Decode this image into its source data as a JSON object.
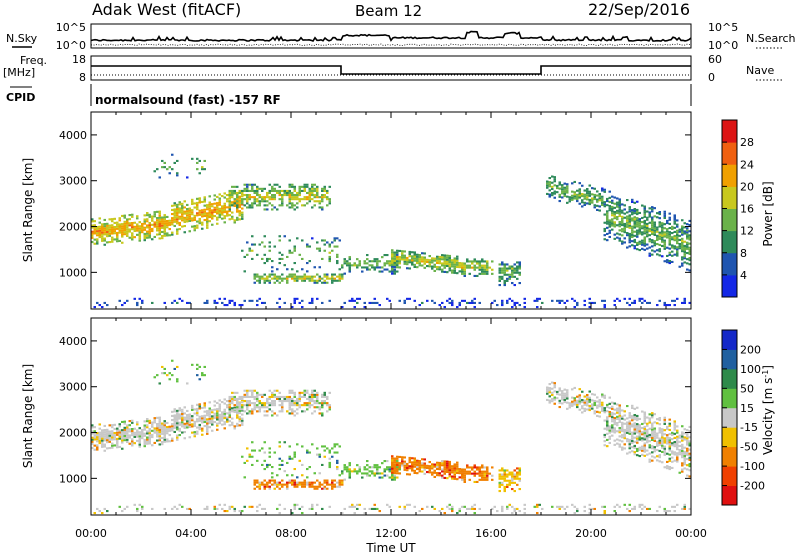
{
  "header": {
    "station": "Adak West (fitACF)",
    "beam": "Beam 12",
    "date": "22/Sep/2016"
  },
  "nsky_panel": {
    "left_label": "N.Sky",
    "right_label": "N.Search",
    "left_ticks": [
      "10^5",
      "10^0"
    ],
    "right_ticks": [
      "10^5",
      "10^0"
    ]
  },
  "freq_panel": {
    "left_label_1": "Freq.",
    "left_label_2": "[MHz]",
    "right_label": "Nave",
    "left_ticks": [
      "18",
      "8"
    ],
    "right_ticks": [
      "60",
      "0"
    ]
  },
  "cpid_panel": {
    "label": "CPID",
    "text": "normalsound (fast) -157 RF"
  },
  "chart_data": [
    {
      "type": "heatmap",
      "name": "power",
      "ylabel": "Slant Range [km]",
      "yticks": [
        1000,
        2000,
        3000,
        4000
      ],
      "ylim": [
        200,
        4500
      ],
      "xlim": [
        0,
        24
      ],
      "xticks": [
        "00:00",
        "04:00",
        "08:00",
        "12:00",
        "16:00",
        "20:00",
        "00:00"
      ],
      "xlabel": "Time UT",
      "colorbar": {
        "label": "Power [dB]",
        "ticks": [
          "4",
          "8",
          "12",
          "16",
          "20",
          "24",
          "28"
        ],
        "colors": [
          "#1428e6",
          "#1f55b0",
          "#2e8a5a",
          "#6ab24a",
          "#c8c81e",
          "#f0a000",
          "#f06010",
          "#dc1414"
        ]
      }
    },
    {
      "type": "heatmap",
      "name": "velocity",
      "ylabel": "Slant Range [km]",
      "yticks": [
        1000,
        2000,
        3000,
        4000
      ],
      "ylim": [
        200,
        4500
      ],
      "xlim": [
        0,
        24
      ],
      "xticks": [
        "00:00",
        "04:00",
        "08:00",
        "12:00",
        "16:00",
        "20:00",
        "00:00"
      ],
      "xlabel": "Time UT",
      "colorbar": {
        "label": "Velocity [m s",
        "label_sup": "-1",
        "label_close": "]",
        "ticks": [
          "200",
          "100",
          "50",
          "15",
          "-15",
          "-50",
          "-100",
          "-200"
        ],
        "colors": [
          "#1428c8",
          "#2060a0",
          "#2e8a4a",
          "#60c040",
          "#c8c8c8",
          "#f0c000",
          "#f08000",
          "#f04000",
          "#e01010"
        ]
      }
    }
  ]
}
